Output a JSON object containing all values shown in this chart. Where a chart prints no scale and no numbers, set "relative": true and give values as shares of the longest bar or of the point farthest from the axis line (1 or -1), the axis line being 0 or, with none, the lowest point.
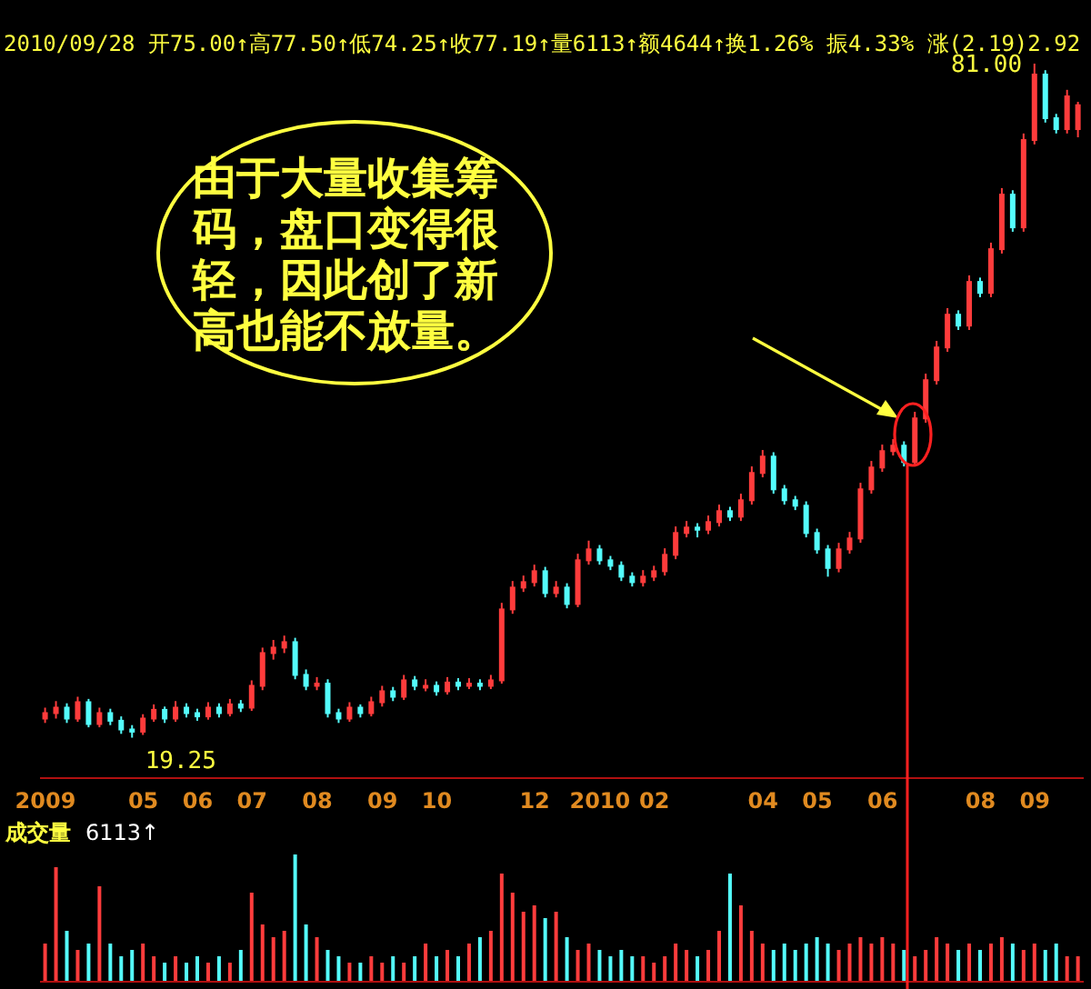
{
  "chart_data": [
    {
      "type": "candlestick",
      "subtitle": "2010/09/28 开75.00↑高77.50↑低74.25↑收77.19↑量6113↑额4644↑换1.26% 振4.33% 涨(2.19)2.92",
      "categories": [
        "2009",
        null,
        null,
        null,
        null,
        null,
        null,
        null,
        null,
        "05",
        null,
        null,
        null,
        null,
        "06",
        null,
        null,
        null,
        null,
        "07",
        null,
        null,
        null,
        null,
        null,
        "08",
        null,
        null,
        null,
        null,
        null,
        "09",
        null,
        null,
        null,
        null,
        "10",
        null,
        null,
        null,
        null,
        null,
        null,
        null,
        null,
        "12",
        null,
        null,
        null,
        null,
        null,
        "2010",
        null,
        null,
        null,
        null,
        "02",
        null,
        null,
        null,
        null,
        null,
        null,
        null,
        null,
        null,
        "04",
        null,
        null,
        null,
        null,
        "05",
        null,
        null,
        null,
        null,
        null,
        "06",
        null,
        null,
        null,
        null,
        null,
        null,
        null,
        null,
        "08",
        null,
        null,
        null,
        null,
        "09",
        null,
        null,
        null,
        null
      ],
      "ohlc": [
        [
          21.0,
          22.0,
          20.6,
          21.5
        ],
        [
          21.5,
          22.6,
          21.0,
          22.0
        ],
        [
          22.0,
          22.4,
          20.6,
          21.0
        ],
        [
          21.0,
          23.0,
          20.7,
          22.5
        ],
        [
          22.5,
          22.8,
          20.2,
          20.5
        ],
        [
          20.5,
          22.0,
          20.2,
          21.5
        ],
        [
          21.5,
          21.9,
          20.4,
          20.8
        ],
        [
          20.8,
          21.2,
          19.6,
          20.0
        ],
        [
          20.0,
          20.4,
          19.25,
          19.8
        ],
        [
          19.8,
          21.4,
          19.5,
          21.0
        ],
        [
          21.0,
          22.3,
          20.7,
          21.8
        ],
        [
          21.8,
          22.1,
          20.6,
          21.0
        ],
        [
          21.0,
          22.6,
          20.7,
          22.0
        ],
        [
          22.0,
          22.4,
          21.1,
          21.5
        ],
        [
          21.5,
          21.9,
          20.8,
          21.2
        ],
        [
          21.2,
          22.5,
          20.9,
          22.0
        ],
        [
          22.0,
          22.4,
          21.1,
          21.5
        ],
        [
          21.5,
          22.8,
          21.2,
          22.3
        ],
        [
          22.3,
          22.7,
          21.6,
          22.0
        ],
        [
          22.0,
          24.5,
          21.7,
          24.0
        ],
        [
          24.0,
          27.5,
          23.6,
          27.0
        ],
        [
          27.0,
          28.2,
          26.4,
          27.5
        ],
        [
          27.5,
          28.6,
          27.0,
          28.0
        ],
        [
          28.0,
          28.4,
          24.6,
          25.0
        ],
        [
          25.0,
          25.5,
          23.6,
          24.0
        ],
        [
          24.0,
          24.8,
          23.6,
          24.2
        ],
        [
          24.2,
          24.6,
          21.1,
          21.5
        ],
        [
          21.5,
          21.9,
          20.6,
          21.0
        ],
        [
          21.0,
          22.5,
          20.7,
          22.0
        ],
        [
          22.0,
          22.3,
          21.1,
          21.5
        ],
        [
          21.5,
          23.0,
          21.2,
          22.5
        ],
        [
          22.5,
          24.0,
          22.1,
          23.5
        ],
        [
          23.5,
          23.9,
          22.6,
          23.0
        ],
        [
          23.0,
          25.0,
          22.7,
          24.5
        ],
        [
          24.5,
          24.9,
          23.6,
          24.0
        ],
        [
          24.0,
          24.6,
          23.5,
          24.0
        ],
        [
          24.0,
          24.4,
          23.1,
          23.5
        ],
        [
          23.5,
          24.8,
          23.2,
          24.3
        ],
        [
          24.3,
          24.7,
          23.6,
          24.0
        ],
        [
          24.0,
          24.7,
          23.7,
          24.2
        ],
        [
          24.2,
          24.6,
          23.6,
          24.0
        ],
        [
          24.0,
          25.0,
          23.7,
          24.5
        ],
        [
          24.5,
          31.6,
          24.2,
          31.0
        ],
        [
          31.0,
          33.6,
          30.6,
          33.0
        ],
        [
          33.0,
          34.1,
          32.6,
          33.5
        ],
        [
          33.5,
          35.1,
          33.1,
          34.5
        ],
        [
          34.5,
          34.9,
          32.1,
          32.5
        ],
        [
          32.5,
          33.6,
          32.1,
          33.0
        ],
        [
          33.0,
          33.4,
          31.1,
          31.5
        ],
        [
          31.5,
          36.1,
          31.2,
          35.5
        ],
        [
          35.5,
          37.3,
          35.1,
          36.5
        ],
        [
          36.5,
          36.9,
          35.1,
          35.5
        ],
        [
          35.5,
          35.9,
          34.6,
          35.0
        ],
        [
          35.0,
          35.4,
          33.6,
          34.0
        ],
        [
          34.0,
          34.4,
          33.1,
          33.5
        ],
        [
          33.5,
          34.6,
          33.1,
          34.0
        ],
        [
          34.0,
          35.0,
          33.6,
          34.5
        ],
        [
          34.5,
          36.6,
          34.1,
          36.0
        ],
        [
          36.0,
          38.6,
          35.6,
          38.0
        ],
        [
          38.0,
          39.1,
          37.6,
          38.5
        ],
        [
          38.5,
          38.9,
          37.6,
          38.3
        ],
        [
          38.3,
          39.6,
          37.9,
          39.0
        ],
        [
          39.0,
          40.6,
          38.6,
          40.0
        ],
        [
          40.0,
          40.4,
          39.1,
          39.5
        ],
        [
          39.5,
          41.6,
          39.1,
          41.0
        ],
        [
          41.0,
          44.1,
          40.6,
          43.5
        ],
        [
          43.5,
          45.6,
          43.1,
          45.0
        ],
        [
          45.0,
          45.4,
          41.6,
          42.0
        ],
        [
          42.0,
          42.4,
          40.6,
          41.0
        ],
        [
          41.0,
          41.4,
          40.1,
          40.5
        ],
        [
          40.5,
          40.9,
          37.6,
          38.0
        ],
        [
          38.0,
          38.4,
          36.1,
          36.5
        ],
        [
          36.5,
          36.9,
          34.0,
          34.8
        ],
        [
          34.8,
          37.1,
          34.4,
          36.5
        ],
        [
          36.5,
          38.1,
          36.1,
          37.5
        ],
        [
          37.5,
          42.6,
          37.1,
          42.0
        ],
        [
          42.0,
          44.6,
          41.6,
          44.0
        ],
        [
          44.0,
          46.1,
          43.6,
          45.5
        ],
        [
          45.5,
          46.6,
          45.1,
          46.0
        ],
        [
          46.0,
          46.4,
          44.1,
          44.5
        ],
        [
          44.5,
          49.1,
          44.1,
          48.5
        ],
        [
          48.5,
          52.6,
          48.1,
          52.0
        ],
        [
          52.0,
          55.6,
          51.6,
          55.0
        ],
        [
          55.0,
          58.6,
          54.6,
          58.0
        ],
        [
          58.0,
          58.4,
          56.6,
          57.0
        ],
        [
          57.0,
          61.6,
          56.6,
          61.0
        ],
        [
          61.0,
          61.4,
          59.6,
          60.0
        ],
        [
          60.0,
          64.6,
          59.6,
          64.0
        ],
        [
          64.0,
          69.6,
          63.6,
          69.0
        ],
        [
          69.0,
          69.4,
          65.6,
          66.0
        ],
        [
          66.0,
          74.6,
          65.6,
          74.0
        ],
        [
          74.0,
          81.0,
          73.6,
          80.0
        ],
        [
          80.0,
          80.4,
          75.6,
          76.0
        ],
        [
          76.0,
          76.4,
          74.6,
          75.0
        ],
        [
          75.0,
          78.6,
          74.6,
          78.0
        ],
        [
          75.0,
          77.5,
          74.25,
          77.19
        ]
      ],
      "annotations": [
        "由于大量收集筹码，盘口变得很轻，因此创了新高也能不放量。",
        "81.00",
        "19.25"
      ],
      "tick_labels": "x"
    },
    {
      "type": "bar",
      "title": "成交量",
      "subtitle": "6113↑",
      "relative": true,
      "categories": [
        null,
        null,
        null,
        null,
        null,
        null,
        null,
        null,
        null,
        null,
        null,
        null,
        null,
        null,
        null,
        null,
        null,
        null,
        null,
        null,
        null,
        null,
        null,
        null,
        null,
        null,
        null,
        null,
        null,
        null,
        null,
        null,
        null,
        null,
        null,
        null,
        null,
        null,
        null,
        null,
        null,
        null,
        null,
        null,
        null,
        null,
        null,
        null,
        null,
        null,
        null,
        null,
        null,
        null,
        null,
        null,
        null,
        null,
        null,
        null,
        null,
        null,
        null,
        null,
        null,
        null,
        null,
        null,
        null,
        null,
        null,
        null,
        null,
        null,
        null,
        null,
        null,
        null,
        null,
        null,
        null,
        null,
        null,
        null,
        null,
        null,
        null,
        null,
        null,
        null,
        null,
        null,
        null,
        null,
        null,
        null
      ],
      "values": [
        0.3,
        0.9,
        0.4,
        0.25,
        0.3,
        0.75,
        0.3,
        0.2,
        0.25,
        0.3,
        0.2,
        0.15,
        0.2,
        0.15,
        0.2,
        0.15,
        0.2,
        0.15,
        0.25,
        0.7,
        0.45,
        0.35,
        0.4,
        1.0,
        0.45,
        0.35,
        0.25,
        0.2,
        0.15,
        0.15,
        0.2,
        0.15,
        0.2,
        0.15,
        0.2,
        0.3,
        0.2,
        0.25,
        0.2,
        0.3,
        0.35,
        0.4,
        0.85,
        0.7,
        0.55,
        0.6,
        0.5,
        0.55,
        0.35,
        0.25,
        0.3,
        0.25,
        0.2,
        0.25,
        0.2,
        0.2,
        0.15,
        0.2,
        0.3,
        0.25,
        0.2,
        0.25,
        0.4,
        0.85,
        0.6,
        0.4,
        0.3,
        0.25,
        0.3,
        0.25,
        0.3,
        0.35,
        0.3,
        0.25,
        0.3,
        0.35,
        0.3,
        0.35,
        0.3,
        0.25,
        0.2,
        0.25,
        0.35,
        0.3,
        0.25,
        0.3,
        0.25,
        0.3,
        0.35,
        0.3,
        0.25,
        0.3,
        0.25,
        0.3,
        0.2,
        0.2
      ],
      "colors": [
        "#ff3c3c",
        "#ff3c3c",
        "#54fcfc",
        "#ff3c3c",
        "#54fcfc",
        "#ff3c3c",
        "#54fcfc",
        "#54fcfc",
        "#54fcfc",
        "#ff3c3c",
        "#ff3c3c",
        "#54fcfc",
        "#ff3c3c",
        "#54fcfc",
        "#54fcfc",
        "#ff3c3c",
        "#54fcfc",
        "#ff3c3c",
        "#54fcfc",
        "#ff3c3c",
        "#ff3c3c",
        "#ff3c3c",
        "#ff3c3c",
        "#54fcfc",
        "#54fcfc",
        "#ff3c3c",
        "#54fcfc",
        "#54fcfc",
        "#ff3c3c",
        "#54fcfc",
        "#ff3c3c",
        "#ff3c3c",
        "#54fcfc",
        "#ff3c3c",
        "#54fcfc",
        "#ff3c3c",
        "#54fcfc",
        "#ff3c3c",
        "#54fcfc",
        "#ff3c3c",
        "#54fcfc",
        "#ff3c3c",
        "#ff3c3c",
        "#ff3c3c",
        "#ff3c3c",
        "#ff3c3c",
        "#54fcfc",
        "#ff3c3c",
        "#54fcfc",
        "#ff3c3c",
        "#ff3c3c",
        "#54fcfc",
        "#54fcfc",
        "#54fcfc",
        "#54fcfc",
        "#ff3c3c",
        "#ff3c3c",
        "#ff3c3c",
        "#ff3c3c",
        "#ff3c3c",
        "#54fcfc",
        "#ff3c3c",
        "#ff3c3c",
        "#54fcfc",
        "#ff3c3c",
        "#ff3c3c",
        "#ff3c3c",
        "#54fcfc",
        "#54fcfc",
        "#54fcfc",
        "#54fcfc",
        "#54fcfc",
        "#54fcfc",
        "#ff3c3c",
        "#ff3c3c",
        "#ff3c3c",
        "#ff3c3c",
        "#ff3c3c",
        "#ff3c3c",
        "#54fcfc",
        "#ff3c3c",
        "#ff3c3c",
        "#ff3c3c",
        "#ff3c3c",
        "#54fcfc",
        "#ff3c3c",
        "#54fcfc",
        "#ff3c3c",
        "#ff3c3c",
        "#54fcfc",
        "#ff3c3c",
        "#ff3c3c",
        "#54fcfc",
        "#54fcfc",
        "#ff3c3c",
        "#ff3c3c"
      ]
    }
  ]
}
